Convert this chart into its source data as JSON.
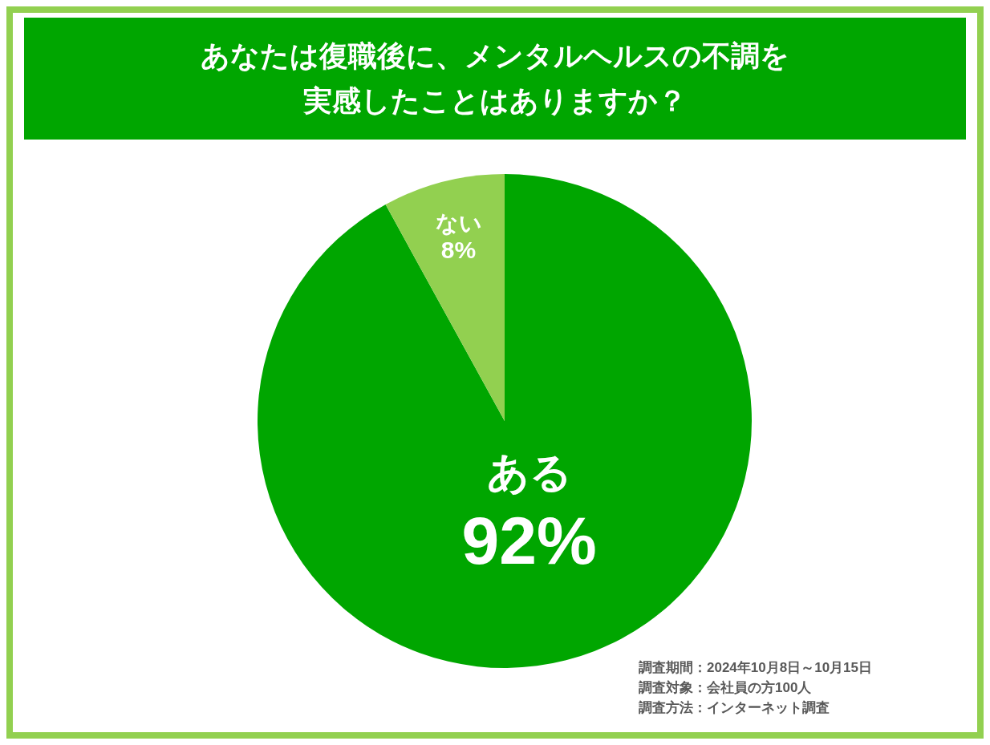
{
  "chart_data": {
    "type": "pie",
    "title": "あなたは復職後に、メンタルヘルスの不調を実感したことはありますか？",
    "categories": [
      "ある",
      "ない"
    ],
    "values": [
      92,
      8
    ],
    "value_labels": [
      "92%",
      "8%"
    ],
    "colors": [
      "#00a600",
      "#92d050"
    ],
    "legend": false,
    "annotations": [
      "調査期間：2024年10月8日～10月15日",
      "調査対象：会社員の方100人",
      "調査方法：インターネット調査"
    ]
  }
}
